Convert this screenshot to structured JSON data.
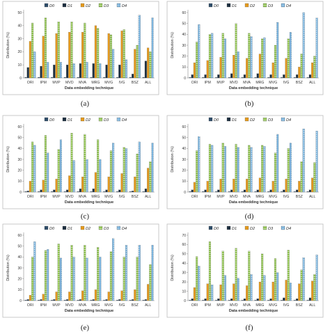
{
  "figure": {
    "xlabel": "Data embedding technique",
    "ylabel": "Distribution (%)"
  },
  "chart_data": [
    {
      "type": "bar",
      "caption": "(a)",
      "categories": [
        "ORI",
        "IPM",
        "MVP",
        "MVD",
        "MVA",
        "MRG",
        "MVG",
        "IVG",
        "BSZ",
        "ALL"
      ],
      "ylim": [
        0,
        50
      ],
      "yticks": [
        0,
        10,
        20,
        30,
        40,
        50
      ],
      "xlabel": "Data embedding technique",
      "ylabel": "Distribution (%)",
      "legend": "top",
      "grid": false,
      "series": [
        {
          "name": "D0",
          "values": [
            0.5,
            0.5,
            0.5,
            0.5,
            0.5,
            0.5,
            0.5,
            0.5,
            0.5,
            0.5
          ]
        },
        {
          "name": "D1",
          "values": [
            8,
            9,
            10,
            10,
            11,
            11,
            10,
            10,
            3,
            13
          ]
        },
        {
          "name": "D2",
          "values": [
            28,
            32,
            34,
            35,
            35,
            40,
            34,
            36,
            22,
            23
          ]
        },
        {
          "name": "D3",
          "values": [
            42,
            46,
            43,
            43,
            42,
            38,
            33,
            37,
            25,
            20
          ]
        },
        {
          "name": "D4",
          "values": [
            20,
            12,
            12,
            11,
            12,
            11,
            22,
            14,
            48,
            46
          ]
        }
      ]
    },
    {
      "type": "bar",
      "caption": "(b)",
      "categories": [
        "ORI",
        "IPM",
        "MVP",
        "MVD",
        "MVA",
        "MRG",
        "MVG",
        "IVG",
        "BSZ",
        "ALL"
      ],
      "ylim": [
        0,
        60
      ],
      "yticks": [
        0,
        10,
        20,
        30,
        40,
        50,
        60
      ],
      "xlabel": "Data embedding technique",
      "ylabel": "Distribution (%)",
      "legend": "top",
      "grid": false,
      "series": [
        {
          "name": "D0",
          "values": [
            0.5,
            0.5,
            0.5,
            0.5,
            0.5,
            0.5,
            0.5,
            0.5,
            0.5,
            0.5
          ]
        },
        {
          "name": "D1",
          "values": [
            3,
            3,
            3,
            4,
            3,
            4,
            3,
            3,
            3,
            3
          ]
        },
        {
          "name": "D2",
          "values": [
            14,
            16,
            19,
            21,
            18,
            22,
            14,
            18,
            10,
            14
          ]
        },
        {
          "name": "D3",
          "values": [
            33,
            40,
            41,
            50,
            41,
            36,
            30,
            36,
            22,
            20
          ]
        },
        {
          "name": "D4",
          "values": [
            49,
            41,
            36,
            24,
            38,
            37,
            51,
            42,
            60,
            55
          ]
        }
      ]
    },
    {
      "type": "bar",
      "caption": "(c)",
      "categories": [
        "ORI",
        "IPM",
        "MVP",
        "MVD",
        "MVA",
        "MRG",
        "MVG",
        "IVG",
        "BSZ",
        "ALL"
      ],
      "ylim": [
        0,
        60
      ],
      "yticks": [
        0,
        10,
        20,
        30,
        40,
        50,
        60
      ],
      "xlabel": "Data embedding technique",
      "ylabel": "Distribution (%)",
      "legend": "top",
      "grid": false,
      "series": [
        {
          "name": "D0",
          "values": [
            0.5,
            0.5,
            0.5,
            0.5,
            0.5,
            0.5,
            0.5,
            0.5,
            0.5,
            0.5
          ]
        },
        {
          "name": "D1",
          "values": [
            1,
            2,
            2,
            2,
            3,
            3,
            2,
            2,
            1,
            3
          ]
        },
        {
          "name": "D2",
          "values": [
            10,
            11,
            12,
            15,
            14,
            18,
            14,
            17,
            14,
            22
          ]
        },
        {
          "name": "D3",
          "values": [
            46,
            52,
            39,
            54,
            53,
            48,
            38,
            41,
            35,
            28
          ]
        },
        {
          "name": "D4",
          "values": [
            43,
            36,
            48,
            29,
            30,
            30,
            45,
            40,
            46,
            45
          ]
        }
      ]
    },
    {
      "type": "bar",
      "caption": "(d)",
      "categories": [
        "ORI",
        "IPM",
        "MVP",
        "MVD",
        "MVA",
        "MRG",
        "MVG",
        "IVG",
        "BSZ",
        "ALL"
      ],
      "ylim": [
        0,
        60
      ],
      "yticks": [
        0,
        10,
        20,
        30,
        40,
        50,
        60
      ],
      "xlabel": "Data embedding technique",
      "ylabel": "Distribution (%)",
      "legend": "top",
      "grid": false,
      "series": [
        {
          "name": "D0",
          "values": [
            0.5,
            0.5,
            0.5,
            0.5,
            0.5,
            0.5,
            0.5,
            0.5,
            0.5,
            0.5
          ]
        },
        {
          "name": "D1",
          "values": [
            2,
            2,
            2,
            2,
            2,
            2,
            2,
            2,
            2,
            2
          ]
        },
        {
          "name": "D2",
          "values": [
            9,
            10,
            12,
            12,
            12,
            13,
            10,
            12,
            10,
            13
          ]
        },
        {
          "name": "D3",
          "values": [
            38,
            44,
            45,
            44,
            43,
            43,
            36,
            40,
            28,
            27
          ]
        },
        {
          "name": "D4",
          "values": [
            51,
            43,
            42,
            41,
            41,
            42,
            53,
            45,
            58,
            56
          ]
        }
      ]
    },
    {
      "type": "bar",
      "caption": "(e)",
      "categories": [
        "ORI",
        "IPM",
        "MVP",
        "MVD",
        "MVA",
        "MRG",
        "MVG",
        "IVG",
        "BSZ",
        "ALL"
      ],
      "ylim": [
        0,
        60
      ],
      "yticks": [
        0,
        10,
        20,
        30,
        40,
        50,
        60
      ],
      "xlabel": "Data embedding technique",
      "ylabel": "Distribution (%)",
      "legend": "top",
      "grid": false,
      "series": [
        {
          "name": "D0",
          "values": [
            0.5,
            0.5,
            0.5,
            0.5,
            0.5,
            0.5,
            0.5,
            0.5,
            0.5,
            0.5
          ]
        },
        {
          "name": "D1",
          "values": [
            1,
            1,
            1,
            1,
            1,
            1,
            1,
            1,
            1,
            1
          ]
        },
        {
          "name": "D2",
          "values": [
            5,
            6,
            8,
            8,
            9,
            10,
            8,
            9,
            10,
            15
          ]
        },
        {
          "name": "D3",
          "values": [
            40,
            46,
            52,
            51,
            51,
            49,
            45,
            40,
            40,
            33
          ]
        },
        {
          "name": "D4",
          "values": [
            54,
            47,
            39,
            40,
            39,
            40,
            57,
            51,
            51,
            51
          ]
        }
      ]
    },
    {
      "type": "bar",
      "caption": "(f)",
      "categories": [
        "ORI",
        "IPM",
        "MVP",
        "MVD",
        "MVA",
        "MRG",
        "MVG",
        "IVG",
        "BSZ",
        "ALL"
      ],
      "ylim": [
        0,
        70
      ],
      "yticks": [
        0,
        10,
        20,
        30,
        40,
        50,
        60,
        70
      ],
      "xlabel": "Data embedding technique",
      "ylabel": "Distribution (%)",
      "legend": "top",
      "grid": false,
      "series": [
        {
          "name": "D0",
          "values": [
            0.5,
            0.5,
            0.5,
            0.5,
            0.5,
            0.5,
            0.5,
            0.5,
            0.5,
            0.5
          ]
        },
        {
          "name": "D1",
          "values": [
            2,
            2,
            2,
            2,
            2,
            2,
            2,
            3,
            2,
            3
          ]
        },
        {
          "name": "D2",
          "values": [
            14,
            18,
            17,
            18,
            16,
            20,
            20,
            22,
            18,
            21
          ]
        },
        {
          "name": "D3",
          "values": [
            47,
            63,
            53,
            56,
            53,
            50,
            45,
            54,
            33,
            28
          ]
        },
        {
          "name": "D4",
          "values": [
            37,
            17,
            27,
            24,
            28,
            27,
            30,
            19,
            46,
            49
          ]
        }
      ]
    }
  ],
  "series_style": [
    {
      "name": "D0",
      "fill": "#2e4d6a",
      "pattern": "solid"
    },
    {
      "name": "D1",
      "fill": "#1d2f40",
      "pattern": "solid"
    },
    {
      "name": "D2",
      "fill": "#e59a1d",
      "pattern": "solid"
    },
    {
      "name": "D3",
      "fill": "#8fc250",
      "pattern": "stripes"
    },
    {
      "name": "D4",
      "fill": "#7ab3dd",
      "pattern": "dots"
    }
  ]
}
